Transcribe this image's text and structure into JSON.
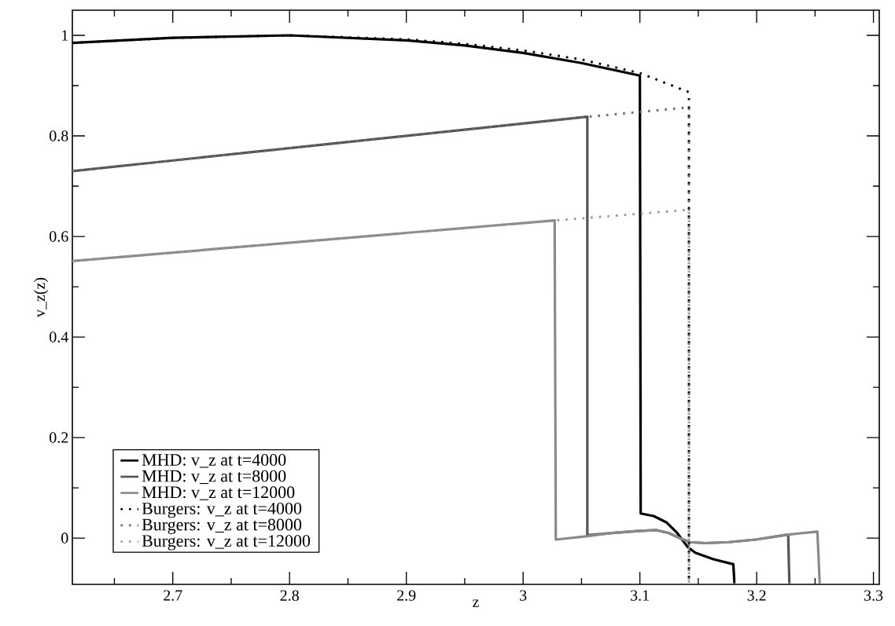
{
  "chart_data": {
    "type": "line",
    "xlabel": "z",
    "ylabel": "v_z(z)",
    "xlim": [
      2.614,
      3.305
    ],
    "ylim": [
      -0.092,
      1.05
    ],
    "xticks": [
      {
        "value": 2.65,
        "label": null
      },
      2.7,
      {
        "value": 2.75,
        "label": null
      },
      2.8,
      {
        "value": 2.85,
        "label": null
      },
      2.9,
      {
        "value": 2.95,
        "label": null
      },
      3,
      {
        "value": 3.05,
        "label": null
      },
      3.1,
      {
        "value": 3.15,
        "label": null
      },
      3.2,
      {
        "value": 3.25,
        "label": null
      },
      3.3
    ],
    "yticks": [
      0,
      {
        "value": 0.1,
        "label": null
      },
      0.2,
      {
        "value": 0.3,
        "label": null
      },
      0.4,
      {
        "value": 0.5,
        "label": null
      },
      0.6,
      {
        "value": 0.7,
        "label": null
      },
      0.8,
      {
        "value": 0.9,
        "label": null
      },
      1
    ],
    "grid": false,
    "legend": "bottom left",
    "marker": "none",
    "series": [
      {
        "name": "MHD: v_z at t=4000",
        "color": "#000000",
        "line_style": "solid",
        "x": [
          2.614,
          2.7,
          2.8,
          2.9,
          2.95,
          3.0,
          3.05,
          3.1,
          3.1007,
          3.1118,
          3.123,
          3.132,
          3.141,
          3.1475,
          3.163,
          3.18,
          3.181
        ],
        "values": [
          0.985,
          0.995,
          1.0,
          0.99,
          0.98,
          0.965,
          0.945,
          0.92,
          0.049,
          0.044,
          0.031,
          0.01,
          -0.018,
          -0.029,
          -0.042,
          -0.052,
          -0.09
        ]
      },
      {
        "name": "MHD: v_z at t=8000",
        "color": "#555555",
        "line_style": "solid",
        "x": [
          2.614,
          3.055,
          3.055,
          3.076,
          3.098,
          3.114,
          3.125,
          3.134,
          3.143,
          3.156,
          3.176,
          3.199,
          3.227,
          3.228
        ],
        "values": [
          0.73,
          0.838,
          0.006,
          0.01,
          0.014,
          0.016,
          0.01,
          0.0,
          -0.008,
          -0.01,
          -0.008,
          -0.003,
          0.007,
          -0.09
        ]
      },
      {
        "name": "MHD: v_z at t=12000",
        "color": "#8a8a8a",
        "line_style": "solid",
        "x": [
          2.614,
          3.027,
          3.028,
          3.055,
          3.076,
          3.098,
          3.114,
          3.125,
          3.134,
          3.143,
          3.156,
          3.176,
          3.199,
          3.227,
          3.252,
          3.254
        ],
        "values": [
          0.551,
          0.632,
          -0.003,
          0.004,
          0.01,
          0.014,
          0.016,
          0.01,
          0.0,
          -0.008,
          -0.01,
          -0.008,
          -0.003,
          0.007,
          0.013,
          -0.09
        ]
      },
      {
        "name": "Burgers: v_z at t=4000",
        "color": "#000000",
        "line_style": "dotted",
        "x": [
          2.614,
          2.7,
          2.8,
          2.9,
          2.95,
          3.0,
          3.05,
          3.1,
          3.142,
          3.142
        ],
        "values": [
          0.985,
          0.995,
          1.0,
          0.992,
          0.983,
          0.97,
          0.952,
          0.925,
          0.887,
          -0.09
        ]
      },
      {
        "name": "Burgers: v_z at t=8000",
        "color": "#6e6e6e",
        "line_style": "dotted",
        "x": [
          2.614,
          3.055,
          3.142,
          3.142
        ],
        "values": [
          0.73,
          0.838,
          0.857,
          -0.09
        ]
      },
      {
        "name": "Burgers: v_z at t=12000",
        "color": "#9a9a9a",
        "line_style": "dotted",
        "x": [
          2.614,
          3.028,
          3.142,
          3.142
        ],
        "values": [
          0.551,
          0.632,
          0.653,
          -0.09
        ]
      }
    ]
  }
}
